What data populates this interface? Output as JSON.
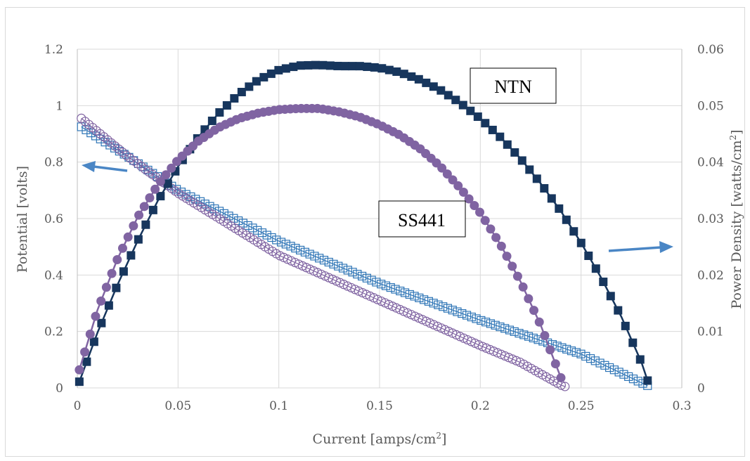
{
  "chart_data": {
    "type": "scatter",
    "title": "",
    "xlabel": "Current [amps/cm2]",
    "ylabel_left": "Potential [volts]",
    "ylabel_right": "Power Density [watts/cm2]",
    "xlim": [
      0,
      0.3
    ],
    "ylim_left": [
      0,
      1.2
    ],
    "ylim_right": [
      0,
      0.06
    ],
    "grid": true,
    "x_ticks": [
      "0",
      "0.05",
      "0.1",
      "0.15",
      "0.2",
      "0.25",
      "0.3"
    ],
    "y_left_ticks": [
      "0",
      "0.2",
      "0.4",
      "0.6",
      "0.8",
      "1",
      "1.2"
    ],
    "y_right_ticks": [
      "0",
      "0.01",
      "0.02",
      "0.03",
      "0.04",
      "0.05",
      "0.06"
    ],
    "annotations": [
      "NTN",
      "SS441"
    ],
    "series": [
      {
        "name": "NTN",
        "quantity": "power density",
        "axis": "right",
        "marker": "filled-square",
        "color": "#17365d",
        "x": [
          0.001,
          0.01,
          0.02,
          0.03,
          0.04,
          0.05,
          0.06,
          0.07,
          0.08,
          0.09,
          0.1,
          0.11,
          0.12,
          0.13,
          0.14,
          0.15,
          0.16,
          0.17,
          0.18,
          0.19,
          0.2,
          0.21,
          0.22,
          0.23,
          0.24,
          0.25,
          0.26,
          0.27,
          0.28,
          0.283
        ],
        "y": [
          0.0011,
          0.0098,
          0.0183,
          0.0261,
          0.0332,
          0.0392,
          0.0444,
          0.0486,
          0.052,
          0.0546,
          0.0563,
          0.0571,
          0.0572,
          0.057,
          0.057,
          0.0567,
          0.0559,
          0.0546,
          0.0528,
          0.0505,
          0.0477,
          0.0444,
          0.0406,
          0.0362,
          0.0313,
          0.0257,
          0.0195,
          0.0126,
          0.0045,
          0.0013
        ]
      },
      {
        "name": "SS441",
        "quantity": "power density",
        "axis": "right",
        "marker": "filled-circle",
        "color": "#8064a2",
        "x": [
          0.001,
          0.01,
          0.02,
          0.03,
          0.04,
          0.05,
          0.06,
          0.07,
          0.08,
          0.09,
          0.1,
          0.11,
          0.12,
          0.13,
          0.14,
          0.15,
          0.16,
          0.17,
          0.18,
          0.19,
          0.2,
          0.21,
          0.22,
          0.23,
          0.235,
          0.24
        ],
        "y": [
          0.0032,
          0.0138,
          0.0229,
          0.0303,
          0.036,
          0.0404,
          0.0437,
          0.0461,
          0.0477,
          0.0487,
          0.0493,
          0.0495,
          0.0495,
          0.0489,
          0.048,
          0.0466,
          0.0448,
          0.0424,
          0.0393,
          0.0354,
          0.031,
          0.0254,
          0.0188,
          0.0111,
          0.0064,
          0.0018
        ]
      },
      {
        "name": "NTN",
        "quantity": "potential",
        "axis": "left",
        "marker": "open-square",
        "color": "#2e75b6",
        "x": [
          0.002,
          0.025,
          0.05,
          0.1,
          0.15,
          0.2,
          0.25,
          0.283
        ],
        "y": [
          0.925,
          0.82,
          0.7,
          0.52,
          0.37,
          0.24,
          0.12,
          0.008
        ]
      },
      {
        "name": "SS441",
        "quantity": "potential",
        "axis": "left",
        "marker": "open-circle",
        "color": "#8064a2",
        "x": [
          0.002,
          0.025,
          0.05,
          0.1,
          0.15,
          0.2,
          0.22,
          0.24,
          0.242
        ],
        "y": [
          0.955,
          0.82,
          0.69,
          0.47,
          0.31,
          0.15,
          0.09,
          0.01,
          0.005
        ]
      }
    ]
  }
}
